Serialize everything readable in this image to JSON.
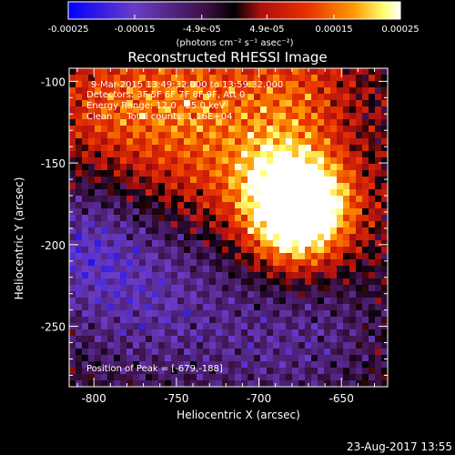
{
  "colorbar": {
    "tick_labels": [
      "-0.00025",
      "-0.00015",
      "-4.9e-05",
      "4.9e-05",
      "0.00015",
      "0.00025"
    ],
    "tick_values": [
      -0.00025,
      -0.00015,
      -4.9e-05,
      4.9e-05,
      0.00015,
      0.00025
    ],
    "range": [
      -0.00025,
      0.00025
    ],
    "units_label": "(photons cm⁻² s⁻¹ asec⁻²)",
    "color_stops": [
      "#0000ff",
      "#6a3cc7",
      "#b01060",
      "#e11a00",
      "#ff8a00",
      "#ffff80",
      "#ffffff"
    ]
  },
  "plot": {
    "title": "Reconstructed RHESSI Image",
    "xlabel": "Heliocentric X (arcsec)",
    "ylabel": "Heliocentric Y (arcsec)",
    "x_tick_labels": [
      "-800",
      "-750",
      "-700",
      "-650"
    ],
    "y_tick_labels": [
      "-100",
      "-150",
      "-200",
      "-250"
    ],
    "annotations": {
      "time": "9-Mar-2015 13:49:32.000 to 13:59:32.000",
      "detectors": "Detectors: 3F 5F 6F 7F 8F 9F, Att 0",
      "energy": "Energy Range: 12.0 - 25.0 keV",
      "clean": "Clean     Total counts: 1.16E+04",
      "peak": "Position of Peak = [-679,-188]"
    }
  },
  "footer": {
    "timestamp": "23-Aug-2017 13:55"
  },
  "chart_data": {
    "type": "heatmap",
    "title": "Reconstructed RHESSI Image",
    "xlabel": "Heliocentric X (arcsec)",
    "ylabel": "Heliocentric Y (arcsec)",
    "xlim": [
      -815,
      -622
    ],
    "ylim": [
      -287,
      -92
    ],
    "x_ticks": [
      -800,
      -750,
      -700,
      -650
    ],
    "y_ticks": [
      -100,
      -150,
      -200,
      -250
    ],
    "peak": [
      -679,
      -188
    ],
    "colorbar_range": [
      -0.00025,
      0.00025
    ],
    "units": "photons cm-2 s-1 asec-2",
    "sources": [
      {
        "x": -679,
        "y": -188,
        "amplitude": 0.00025,
        "sigma": 20
      },
      {
        "x": -690,
        "y": -160,
        "amplitude": 0.00017,
        "sigma": 22
      },
      {
        "x": -665,
        "y": -172,
        "amplitude": 0.00016,
        "sigma": 20
      },
      {
        "x": -740,
        "y": -150,
        "amplitude": 9e-05,
        "sigma": 30
      },
      {
        "x": -790,
        "y": -115,
        "amplitude": 0.00011,
        "sigma": 25
      },
      {
        "x": -740,
        "y": -105,
        "amplitude": 0.0001,
        "sigma": 25
      },
      {
        "x": -680,
        "y": -110,
        "amplitude": 0.00012,
        "sigma": 25
      },
      {
        "x": -770,
        "y": -230,
        "amplitude": -0.00012,
        "sigma": 40
      },
      {
        "x": -690,
        "y": -265,
        "amplitude": -8e-05,
        "sigma": 35
      },
      {
        "x": -810,
        "y": -200,
        "amplitude": -9e-05,
        "sigma": 25
      },
      {
        "x": -650,
        "y": -250,
        "amplitude": -4e-05,
        "sigma": 25
      }
    ],
    "ripple_amplitude": 6e-05
  }
}
